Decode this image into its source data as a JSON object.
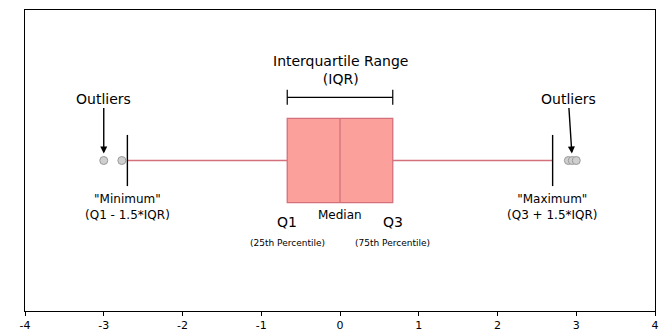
{
  "chart_data": {
    "type": "box",
    "orientation": "horizontal",
    "color": "#fca09c",
    "q1": -0.67,
    "median": 0,
    "q3": 0.67,
    "whisker_low": -2.7,
    "whisker_high": 2.7,
    "outliers": [
      -3.0,
      -2.77,
      2.9,
      2.95,
      3.0
    ],
    "xlim": [
      -4,
      4
    ],
    "xticks": [
      -4,
      -3,
      -2,
      -1,
      0,
      1,
      2,
      3,
      4
    ],
    "grid": false,
    "tick_labels": "x",
    "annotations": {
      "iqr": "Interquartile Range\n(IQR)",
      "outliers": "Outliers",
      "minimum": "\"Minimum\"\n(Q1 - 1.5*IQR)",
      "maximum": "\"Maximum\"\n(Q3 + 1.5*IQR)",
      "q1": "Q1",
      "median": "Median",
      "q3": "Q3",
      "q1_note": "(25th Percentile)",
      "q3_note": "(75th Percentile)"
    }
  }
}
